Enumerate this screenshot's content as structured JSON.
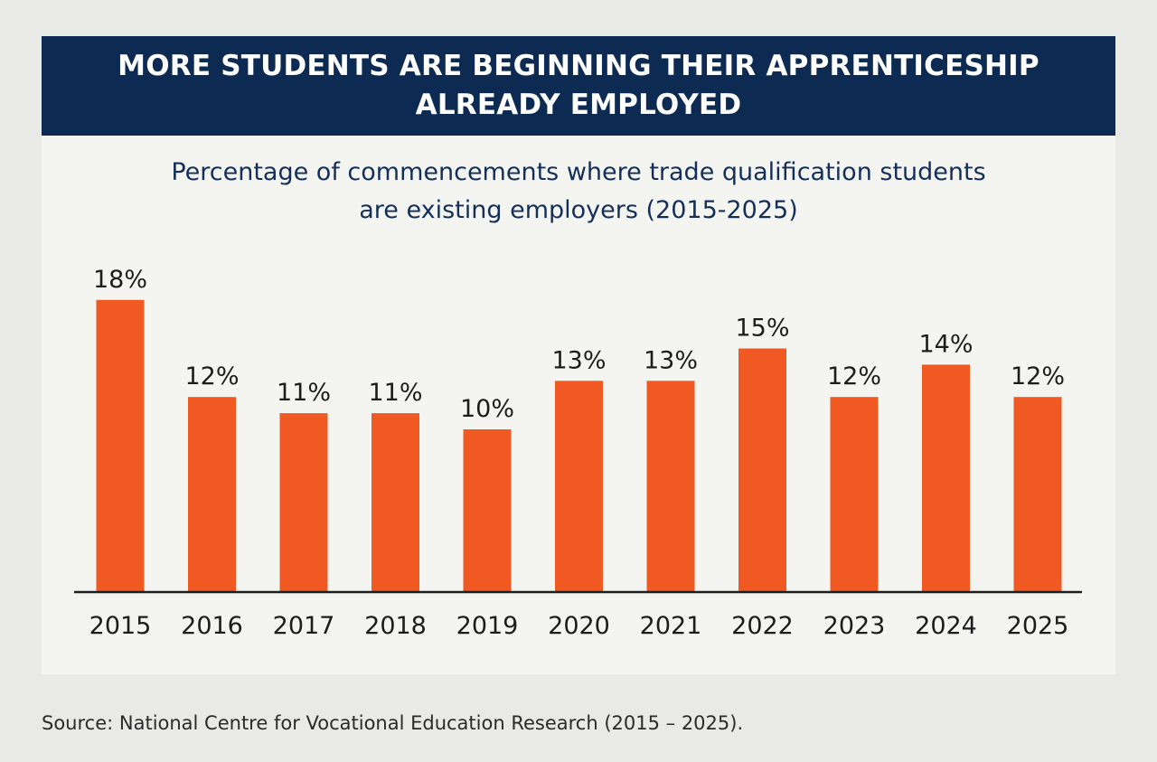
{
  "header": {
    "line1": "MORE STUDENTS ARE BEGINNING THEIR APPRENTICESHIP",
    "line2": "ALREADY EMPLOYED"
  },
  "subtitle": {
    "line1": "Percentage of commencements where trade qualification students",
    "line2": "are existing employers (2015-2025)"
  },
  "source": "Source: National Centre for Vocational Education Research (2015 – 2025).",
  "colors": {
    "banner": "#0d2a52",
    "bar": "#f05a22",
    "axis": "#1e1e1e"
  },
  "chart_data": {
    "type": "bar",
    "title": "Percentage of commencements where trade qualification students are existing employers (2015-2025)",
    "categories": [
      "2015",
      "2016",
      "2017",
      "2018",
      "2019",
      "2020",
      "2021",
      "2022",
      "2023",
      "2024",
      "2025"
    ],
    "values": [
      18,
      12,
      11,
      11,
      10,
      13,
      13,
      15,
      12,
      14,
      12
    ],
    "labels": [
      "18%",
      "12%",
      "11%",
      "11%",
      "10%",
      "13%",
      "13%",
      "15%",
      "12%",
      "14%",
      "12%"
    ],
    "ylim": [
      0,
      18
    ],
    "grid": false,
    "legend": "none"
  }
}
